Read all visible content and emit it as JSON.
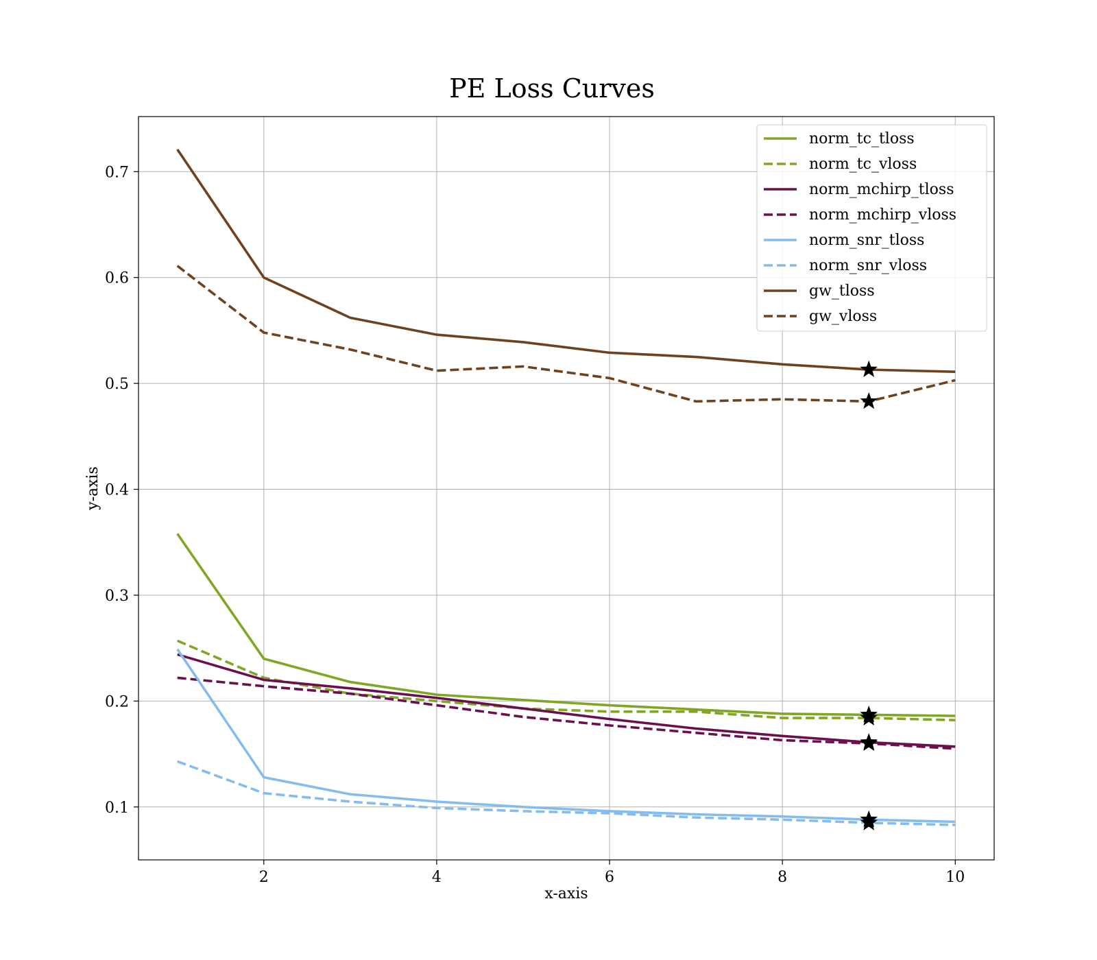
{
  "chart_data": {
    "type": "line",
    "title": "PE Loss Curves",
    "xlabel": "x-axis",
    "ylabel": "y-axis",
    "xlim": [
      0.55,
      10.45
    ],
    "ylim": [
      0.05,
      0.752
    ],
    "xticks": [
      2,
      4,
      6,
      8,
      10
    ],
    "yticks": [
      0.1,
      0.2,
      0.3,
      0.4,
      0.5,
      0.6,
      0.7
    ],
    "grid": true,
    "legend_position": "top-right",
    "x": [
      1,
      2,
      3,
      4,
      5,
      6,
      7,
      8,
      9,
      10
    ],
    "series": [
      {
        "name": "norm_tc_tloss",
        "color": "#7fa624",
        "dash": false,
        "values": [
          0.358,
          0.24,
          0.218,
          0.206,
          0.201,
          0.196,
          0.192,
          0.188,
          0.187,
          0.186
        ],
        "best_x": 9,
        "best_y": 0.187
      },
      {
        "name": "norm_tc_vloss",
        "color": "#7fa624",
        "dash": true,
        "values": [
          0.257,
          0.222,
          0.207,
          0.2,
          0.193,
          0.19,
          0.19,
          0.184,
          0.184,
          0.182
        ],
        "best_x": 9,
        "best_y": 0.184
      },
      {
        "name": "norm_mchirp_tloss",
        "color": "#6b0f4f",
        "dash": false,
        "values": [
          0.244,
          0.22,
          0.212,
          0.203,
          0.193,
          0.183,
          0.174,
          0.167,
          0.161,
          0.157
        ],
        "best_x": 9,
        "best_y": 0.161
      },
      {
        "name": "norm_mchirp_vloss",
        "color": "#6b0f4f",
        "dash": true,
        "values": [
          0.222,
          0.214,
          0.207,
          0.196,
          0.185,
          0.177,
          0.17,
          0.163,
          0.16,
          0.155
        ],
        "best_x": 9,
        "best_y": 0.16
      },
      {
        "name": "norm_snr_tloss",
        "color": "#85bcef",
        "dash": false,
        "values": [
          0.249,
          0.128,
          0.112,
          0.105,
          0.1,
          0.096,
          0.093,
          0.091,
          0.088,
          0.086
        ],
        "best_x": 9,
        "best_y": 0.088
      },
      {
        "name": "norm_snr_vloss",
        "color": "#85bcef",
        "dash": true,
        "values": [
          0.143,
          0.113,
          0.105,
          0.099,
          0.096,
          0.094,
          0.09,
          0.088,
          0.085,
          0.083
        ],
        "best_x": 9,
        "best_y": 0.085
      },
      {
        "name": "gw_tloss",
        "color": "#6e421e",
        "dash": false,
        "values": [
          0.721,
          0.6,
          0.562,
          0.546,
          0.539,
          0.529,
          0.525,
          0.518,
          0.513,
          0.511
        ],
        "best_x": 9,
        "best_y": 0.513
      },
      {
        "name": "gw_vloss",
        "color": "#6e421e",
        "dash": true,
        "values": [
          0.611,
          0.548,
          0.532,
          0.512,
          0.516,
          0.505,
          0.483,
          0.485,
          0.483,
          0.503
        ],
        "best_x": 9,
        "best_y": 0.483
      }
    ]
  }
}
